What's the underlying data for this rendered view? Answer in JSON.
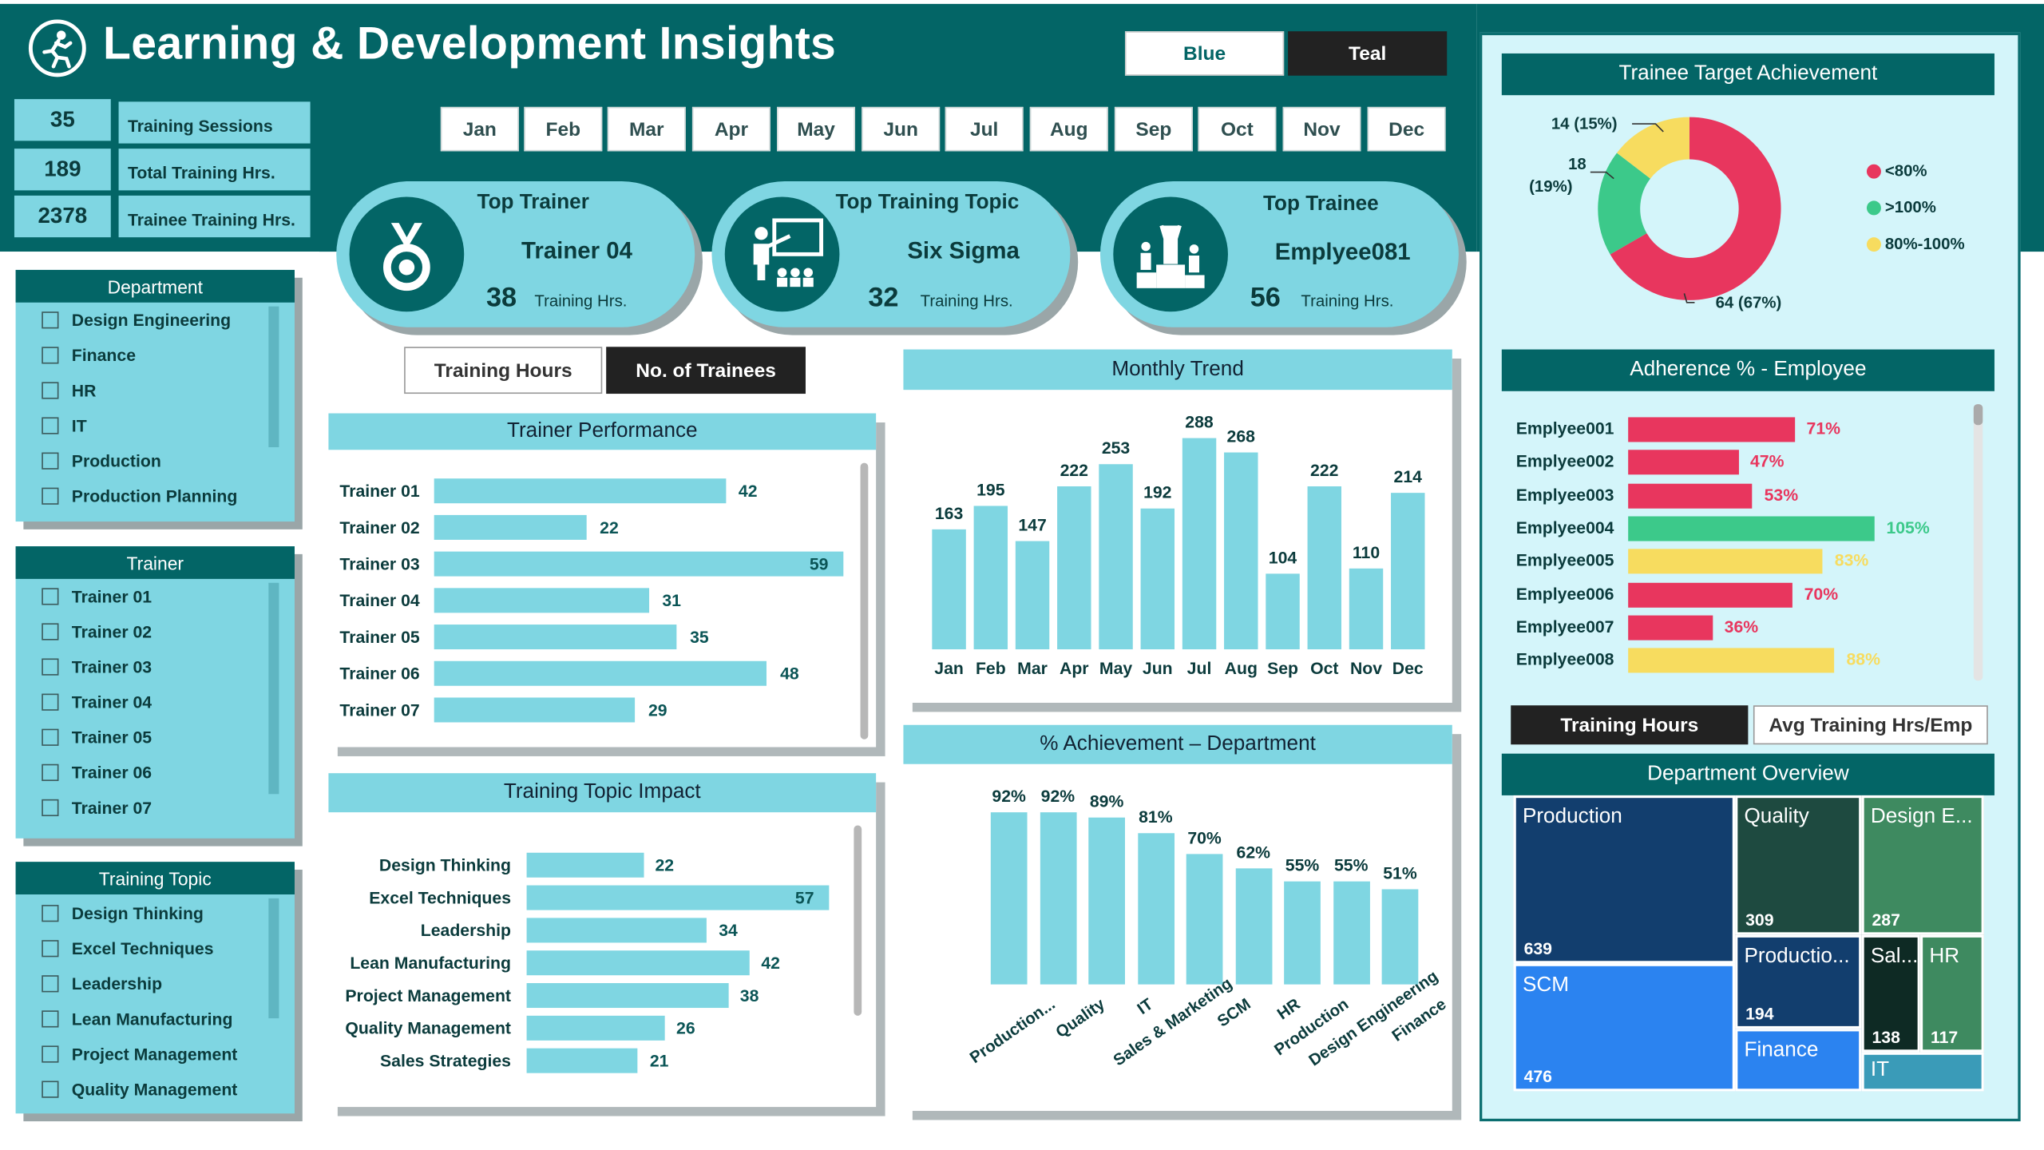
{
  "header": {
    "title": "Learning & Development Insights",
    "theme_buttons": [
      "Blue",
      "Teal"
    ]
  },
  "kpis": [
    {
      "value": "35",
      "label": "Training Sessions"
    },
    {
      "value": "189",
      "label": "Total Training Hrs."
    },
    {
      "value": "2378",
      "label": "Trainee Training Hrs."
    }
  ],
  "months": [
    "Jan",
    "Feb",
    "Mar",
    "Apr",
    "May",
    "Jun",
    "Jul",
    "Aug",
    "Sep",
    "Oct",
    "Nov",
    "Dec"
  ],
  "cards": [
    {
      "title": "Top Trainer",
      "name": "Trainer 04",
      "value": "38",
      "unit": "Training Hrs.",
      "icon": "medal-icon"
    },
    {
      "title": "Top Training Topic",
      "name": "Six Sigma",
      "value": "32",
      "unit": "Training Hrs.",
      "icon": "presentation-icon"
    },
    {
      "title": "Top Trainee",
      "name": "Emplyee081",
      "value": "56",
      "unit": "Training Hrs.",
      "icon": "podium-icon"
    }
  ],
  "slicers": {
    "department": {
      "title": "Department",
      "items": [
        "Design Engineering",
        "Finance",
        "HR",
        "IT",
        "Production",
        "Production Planning"
      ]
    },
    "trainer": {
      "title": "Trainer",
      "items": [
        "Trainer 01",
        "Trainer 02",
        "Trainer 03",
        "Trainer 04",
        "Trainer 05",
        "Trainer 06",
        "Trainer 07"
      ]
    },
    "topic": {
      "title": "Training Topic",
      "items": [
        "Design Thinking",
        "Excel Techniques",
        "Leadership",
        "Lean Manufacturing",
        "Project Management",
        "Quality Management"
      ]
    }
  },
  "toggle_mid": {
    "options": [
      "Training Hours",
      "No. of Trainees"
    ],
    "active": 1
  },
  "toggle_right": {
    "options": [
      "Training Hours",
      "Avg Training Hrs/Emp"
    ],
    "active": 0
  },
  "colors": {
    "teal": "#036566",
    "light": "#7fd6e2",
    "red": "#e8365e",
    "green": "#3cc98a",
    "yellow": "#f7dc5f"
  },
  "panels": {
    "trainer_performance": "Trainer Performance",
    "topic_impact": "Training Topic Impact",
    "monthly_trend": "Monthly Trend",
    "achievement_dept": "% Achievement – Department",
    "target_achievement": "Trainee Target Achievement",
    "adherence": "Adherence % - Employee",
    "dept_overview": "Department Overview"
  },
  "chart_data": [
    {
      "type": "bar",
      "orientation": "horizontal",
      "title": "Trainer Performance",
      "categories": [
        "Trainer 01",
        "Trainer 02",
        "Trainer 03",
        "Trainer 04",
        "Trainer 05",
        "Trainer 06",
        "Trainer 07"
      ],
      "values": [
        42,
        22,
        59,
        31,
        35,
        48,
        29
      ]
    },
    {
      "type": "bar",
      "orientation": "horizontal",
      "title": "Training Topic Impact",
      "categories": [
        "Design Thinking",
        "Excel Techniques",
        "Leadership",
        "Lean Manufacturing",
        "Project Management",
        "Quality Management",
        "Sales Strategies"
      ],
      "values": [
        22,
        57,
        34,
        42,
        38,
        26,
        21
      ]
    },
    {
      "type": "bar",
      "title": "Monthly Trend",
      "categories": [
        "Jan",
        "Feb",
        "Mar",
        "Apr",
        "May",
        "Jun",
        "Jul",
        "Aug",
        "Sep",
        "Oct",
        "Nov",
        "Dec"
      ],
      "values": [
        163,
        195,
        147,
        222,
        253,
        192,
        288,
        268,
        104,
        222,
        110,
        214
      ]
    },
    {
      "type": "bar",
      "title": "% Achievement – Department",
      "categories": [
        "Production...",
        "Quality",
        "IT",
        "Sales & Marketing",
        "SCM",
        "HR",
        "Production",
        "Design Engineering",
        "Finance"
      ],
      "values": [
        92,
        92,
        89,
        81,
        70,
        62,
        55,
        55,
        51
      ],
      "labels": [
        "92%",
        "92%",
        "89%",
        "81%",
        "70%",
        "62%",
        "55%",
        "55%",
        "51%"
      ]
    },
    {
      "type": "pie",
      "title": "Trainee Target Achievement",
      "slices": [
        {
          "name": "<80%",
          "value": 64,
          "label": "64 (67%)",
          "color": "#e8365e"
        },
        {
          "name": ">100%",
          "value": 18,
          "label": "18 (19%)",
          "color": "#3cc98a"
        },
        {
          "name": "80%-100%",
          "value": 14,
          "label": "14 (15%)",
          "color": "#f7dc5f"
        }
      ]
    },
    {
      "type": "bar",
      "orientation": "horizontal",
      "title": "Adherence % - Employee",
      "categories": [
        "Emplyee001",
        "Emplyee002",
        "Emplyee003",
        "Emplyee004",
        "Emplyee005",
        "Emplyee006",
        "Emplyee007",
        "Emplyee008"
      ],
      "values": [
        71,
        47,
        53,
        105,
        83,
        70,
        36,
        88
      ],
      "labels": [
        "71%",
        "47%",
        "53%",
        "105%",
        "83%",
        "70%",
        "36%",
        "88%"
      ]
    },
    {
      "type": "table",
      "title": "Department Overview",
      "rows": [
        {
          "name": "Production",
          "value": "639"
        },
        {
          "name": "SCM",
          "value": "476"
        },
        {
          "name": "Quality",
          "value": "309"
        },
        {
          "name": "Design E...",
          "value": "287"
        },
        {
          "name": "Productio...",
          "value": "194"
        },
        {
          "name": "Finance",
          "value": ""
        },
        {
          "name": "Sal...",
          "value": "138"
        },
        {
          "name": "HR",
          "value": "117"
        },
        {
          "name": "IT",
          "value": ""
        }
      ]
    }
  ]
}
